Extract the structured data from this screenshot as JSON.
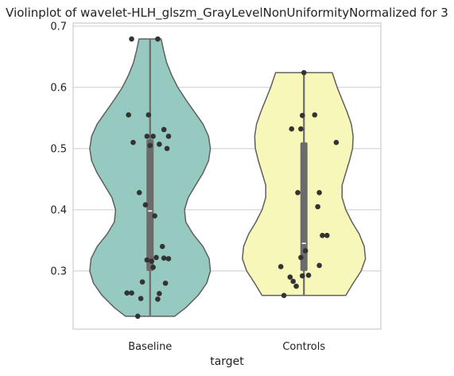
{
  "chart_data": {
    "type": "violin",
    "title": "Violinplot of wavelet-HLH_glszm_GrayLevelNonUniformityNormalized for 3",
    "xlabel": "target",
    "ylabel": "",
    "categories": [
      "Baseline",
      "Controls"
    ],
    "ylim": [
      0.205,
      0.705
    ],
    "yticks": [
      0.3,
      0.4,
      0.5,
      0.6,
      0.7
    ],
    "ytick_labels": [
      "0.3",
      "0.4",
      "0.5",
      "0.6",
      "0.7"
    ],
    "grid": "y",
    "colors": {
      "Baseline": "#96c9bf",
      "Controls": "#f7f7b9",
      "edge": "#5f5f5f",
      "box": "#6b6b6b",
      "points": "#333333",
      "grid": "#d6d6d6",
      "frame": "#cccccc"
    },
    "series": [
      {
        "category": "Baseline",
        "min": 0.226,
        "max": 0.679,
        "q1": 0.3,
        "median": 0.398,
        "q3": 0.515,
        "density": [
          [
            0.226,
            0.4
          ],
          [
            0.24,
            0.58
          ],
          [
            0.26,
            0.78
          ],
          [
            0.28,
            0.92
          ],
          [
            0.3,
            0.98
          ],
          [
            0.32,
            0.96
          ],
          [
            0.34,
            0.86
          ],
          [
            0.36,
            0.7
          ],
          [
            0.38,
            0.58
          ],
          [
            0.4,
            0.56
          ],
          [
            0.42,
            0.62
          ],
          [
            0.44,
            0.74
          ],
          [
            0.46,
            0.86
          ],
          [
            0.48,
            0.95
          ],
          [
            0.5,
            0.98
          ],
          [
            0.52,
            0.95
          ],
          [
            0.54,
            0.86
          ],
          [
            0.56,
            0.72
          ],
          [
            0.58,
            0.58
          ],
          [
            0.6,
            0.45
          ],
          [
            0.62,
            0.35
          ],
          [
            0.64,
            0.27
          ],
          [
            0.66,
            0.22
          ],
          [
            0.679,
            0.18
          ]
        ],
        "points": [
          [
            -0.08,
            0.226
          ],
          [
            -0.06,
            0.255
          ],
          [
            -0.12,
            0.264
          ],
          [
            -0.15,
            0.264
          ],
          [
            0.06,
            0.263
          ],
          [
            0.05,
            0.254
          ],
          [
            -0.05,
            0.282
          ],
          [
            0.1,
            0.28
          ],
          [
            0.02,
            0.306
          ],
          [
            -0.02,
            0.318
          ],
          [
            0.04,
            0.322
          ],
          [
            0.09,
            0.321
          ],
          [
            0.12,
            0.32
          ],
          [
            0.08,
            0.34
          ],
          [
            0.01,
            0.316
          ],
          [
            0.03,
            0.39
          ],
          [
            -0.03,
            0.408
          ],
          [
            -0.07,
            0.428
          ],
          [
            0.0,
            0.505
          ],
          [
            -0.11,
            0.51
          ],
          [
            0.06,
            0.507
          ],
          [
            0.11,
            0.5
          ],
          [
            0.02,
            0.52
          ],
          [
            -0.02,
            0.52
          ],
          [
            0.09,
            0.531
          ],
          [
            0.12,
            0.52
          ],
          [
            -0.14,
            0.555
          ],
          [
            -0.01,
            0.555
          ],
          [
            -0.12,
            0.679
          ],
          [
            0.05,
            0.679
          ]
        ]
      },
      {
        "category": "Controls",
        "min": 0.26,
        "max": 0.624,
        "q1": 0.3,
        "median": 0.345,
        "q3": 0.51,
        "density": [
          [
            0.26,
            0.68
          ],
          [
            0.28,
            0.8
          ],
          [
            0.3,
            0.93
          ],
          [
            0.32,
            1.0
          ],
          [
            0.34,
            0.98
          ],
          [
            0.36,
            0.9
          ],
          [
            0.38,
            0.78
          ],
          [
            0.4,
            0.68
          ],
          [
            0.42,
            0.62
          ],
          [
            0.44,
            0.62
          ],
          [
            0.46,
            0.68
          ],
          [
            0.48,
            0.74
          ],
          [
            0.5,
            0.79
          ],
          [
            0.52,
            0.8
          ],
          [
            0.54,
            0.77
          ],
          [
            0.56,
            0.7
          ],
          [
            0.58,
            0.62
          ],
          [
            0.6,
            0.54
          ],
          [
            0.624,
            0.46
          ]
        ],
        "points": [
          [
            -0.13,
            0.26
          ],
          [
            -0.05,
            0.275
          ],
          [
            -0.07,
            0.283
          ],
          [
            -0.09,
            0.29
          ],
          [
            -0.01,
            0.292
          ],
          [
            0.03,
            0.293
          ],
          [
            -0.15,
            0.307
          ],
          [
            0.1,
            0.309
          ],
          [
            -0.02,
            0.322
          ],
          [
            0.01,
            0.333
          ],
          [
            0.12,
            0.358
          ],
          [
            0.15,
            0.358
          ],
          [
            0.09,
            0.405
          ],
          [
            0.1,
            0.428
          ],
          [
            -0.04,
            0.428
          ],
          [
            0.21,
            0.51
          ],
          [
            -0.08,
            0.532
          ],
          [
            -0.02,
            0.532
          ],
          [
            -0.01,
            0.554
          ],
          [
            0.07,
            0.555
          ],
          [
            0.0,
            0.624
          ]
        ]
      }
    ]
  }
}
